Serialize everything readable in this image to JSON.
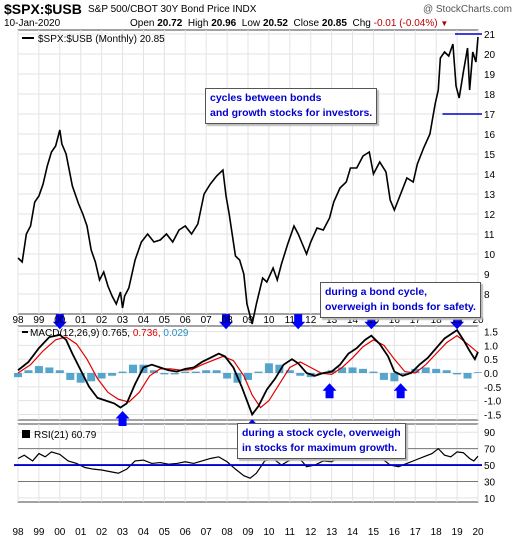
{
  "header": {
    "symbol": "$SPX:$USB",
    "subtitle": "S&P 500/CBOT 30Y Bond Price INDX",
    "credit": "@ StockCharts.com",
    "date": "10-Jan-2020",
    "quote": {
      "open_label": "Open",
      "open": "20.72",
      "high_label": "High",
      "high": "20.96",
      "low_label": "Low",
      "low": "20.52",
      "close_label": "Close",
      "close": "20.85",
      "chg_label": "Chg",
      "chg": "-0.01 (-0.04%)"
    }
  },
  "annotations": {
    "top": "cycles between bonds and growth stocks for investors.",
    "bond": "during a bond cycle, overweigh in bonds for safety.",
    "stock": "during a stock cycle, overweigh in stocks for maximum growth."
  },
  "colors": {
    "price": "#000000",
    "macd_signal": "#e00000",
    "macd_hist": "#2a8fbf",
    "macd_hist_label": "#2a8fbf",
    "annotation": "#0000cc",
    "arrow": "#0000ff",
    "level_line": "#0000cc"
  },
  "chart_data": [
    {
      "type": "line",
      "title": "$SPX:$USB (Monthly) 20.85",
      "yticks": [
        8,
        9,
        10,
        11,
        12,
        13,
        14,
        15,
        16,
        17,
        18,
        19,
        20,
        21
      ],
      "ylim": [
        7,
        21.2
      ],
      "x_start_year": 1998,
      "x_end_year": 2020,
      "xticks": [
        "98",
        "99",
        "00",
        "01",
        "02",
        "03",
        "04",
        "05",
        "06",
        "07",
        "08",
        "09",
        "10",
        "11",
        "12",
        "13",
        "14",
        "15",
        "16",
        "17",
        "18",
        "19",
        "20"
      ],
      "reference_levels": [
        21,
        17
      ],
      "series": [
        {
          "name": "$SPX:$USB",
          "x": [
            1998.0,
            1998.2,
            1998.4,
            1998.6,
            1998.8,
            1999.0,
            1999.2,
            1999.4,
            1999.6,
            1999.8,
            2000.0,
            2000.1,
            2000.3,
            2000.6,
            2000.9,
            2001.1,
            2001.3,
            2001.5,
            2001.7,
            2001.9,
            2002.1,
            2002.3,
            2002.5,
            2002.7,
            2002.9,
            2003.0,
            2003.1,
            2003.3,
            2003.6,
            2003.9,
            2004.2,
            2004.5,
            2004.8,
            2005.1,
            2005.4,
            2005.7,
            2006.0,
            2006.3,
            2006.6,
            2006.9,
            2007.2,
            2007.5,
            2007.8,
            2007.95,
            2008.1,
            2008.4,
            2008.6,
            2008.8,
            2008.95,
            2009.1,
            2009.2,
            2009.4,
            2009.7,
            2009.9,
            2010.2,
            2010.4,
            2010.6,
            2010.9,
            2011.2,
            2011.4,
            2011.6,
            2011.8,
            2012.0,
            2012.3,
            2012.6,
            2012.9,
            2013.1,
            2013.4,
            2013.7,
            2013.9,
            2014.2,
            2014.5,
            2014.8,
            2015.0,
            2015.3,
            2015.6,
            2015.8,
            2016.0,
            2016.3,
            2016.6,
            2016.9,
            2017.1,
            2017.4,
            2017.7,
            2017.95,
            2018.1,
            2018.2,
            2018.4,
            2018.6,
            2018.8,
            2018.95,
            2019.1,
            2019.3,
            2019.5,
            2019.6,
            2019.75,
            2019.9,
            2020.0
          ],
          "y": [
            9.8,
            9.6,
            11.0,
            11.4,
            12.6,
            12.9,
            13.5,
            14.4,
            15.1,
            15.4,
            16.2,
            15.5,
            15.0,
            13.4,
            12.5,
            12.0,
            11.4,
            10.2,
            9.6,
            8.7,
            9.1,
            8.4,
            7.9,
            7.5,
            8.1,
            7.3,
            7.9,
            8.3,
            9.7,
            10.6,
            11.0,
            10.6,
            10.7,
            11.0,
            10.6,
            11.2,
            11.4,
            11.0,
            11.5,
            13.0,
            13.5,
            13.9,
            14.2,
            12.9,
            12.0,
            9.9,
            9.7,
            9.0,
            7.5,
            6.9,
            6.5,
            7.5,
            8.8,
            8.6,
            9.3,
            8.7,
            9.5,
            10.5,
            11.4,
            11.0,
            10.5,
            10.0,
            10.6,
            11.3,
            11.2,
            11.8,
            12.6,
            13.3,
            13.6,
            14.3,
            14.3,
            14.9,
            15.1,
            14.0,
            14.6,
            14.1,
            12.7,
            12.2,
            13.0,
            13.8,
            13.6,
            14.5,
            15.3,
            16.0,
            17.5,
            18.2,
            19.8,
            20.1,
            19.9,
            20.5,
            18.4,
            17.8,
            19.1,
            20.3,
            18.2,
            20.1,
            19.6,
            20.85
          ]
        }
      ]
    },
    {
      "type": "line",
      "title": "MACD(12,26,9) 0.765, 0.736, 0.029",
      "legend_values": {
        "macd": "0.765",
        "signal": "0.736",
        "histogram": "0.029"
      },
      "yticks": [
        1.5,
        1.0,
        0.5,
        0.0,
        -0.5,
        -1.0,
        -1.5
      ],
      "ylim": [
        -1.7,
        1.7
      ],
      "series": [
        {
          "name": "MACD(12,26,9)",
          "x": [
            1998.0,
            1998.5,
            1999.0,
            1999.5,
            2000.0,
            2000.3,
            2000.6,
            2001.0,
            2001.4,
            2001.8,
            2002.2,
            2002.6,
            2002.9,
            2003.2,
            2003.6,
            2004.0,
            2004.4,
            2004.8,
            2005.2,
            2005.6,
            2006.0,
            2006.4,
            2006.8,
            2007.2,
            2007.6,
            2007.9,
            2008.3,
            2008.7,
            2009.0,
            2009.2,
            2009.5,
            2009.9,
            2010.3,
            2010.7,
            2011.1,
            2011.4,
            2011.8,
            2012.2,
            2012.6,
            2013.0,
            2013.4,
            2013.8,
            2014.2,
            2014.6,
            2014.9,
            2015.3,
            2015.7,
            2016.0,
            2016.4,
            2016.8,
            2017.2,
            2017.6,
            2018.0,
            2018.4,
            2018.7,
            2019.0,
            2019.3,
            2019.6,
            2019.85,
            2020.0
          ],
          "y": [
            0.1,
            0.4,
            0.9,
            1.3,
            1.38,
            1.2,
            0.7,
            0.1,
            -0.5,
            -0.9,
            -1.0,
            -1.1,
            -1.25,
            -1.1,
            -0.4,
            0.2,
            0.3,
            0.2,
            0.1,
            0.05,
            0.15,
            0.2,
            0.4,
            0.55,
            0.7,
            0.6,
            0.2,
            -0.5,
            -1.1,
            -1.5,
            -1.2,
            -0.6,
            -0.2,
            0.3,
            0.5,
            0.35,
            0.0,
            -0.1,
            0.0,
            0.05,
            0.3,
            0.7,
            0.9,
            1.2,
            1.35,
            1.05,
            0.6,
            0.05,
            -0.1,
            0.0,
            0.3,
            0.55,
            0.9,
            1.25,
            1.4,
            1.55,
            1.2,
            0.8,
            0.5,
            0.765
          ]
        },
        {
          "name": "signal",
          "x": [
            1998.0,
            1998.6,
            1999.2,
            1999.8,
            2000.3,
            2000.8,
            2001.3,
            2001.8,
            2002.3,
            2002.8,
            2003.3,
            2003.8,
            2004.3,
            2004.8,
            2005.3,
            2005.8,
            2006.3,
            2006.8,
            2007.3,
            2007.8,
            2008.3,
            2008.8,
            2009.2,
            2009.6,
            2010.0,
            2010.5,
            2011.0,
            2011.5,
            2012.0,
            2012.5,
            2013.0,
            2013.5,
            2014.0,
            2014.5,
            2015.0,
            2015.5,
            2016.0,
            2016.5,
            2017.0,
            2017.5,
            2018.0,
            2018.5,
            2019.0,
            2019.5,
            2020.0
          ],
          "y": [
            0.0,
            0.3,
            0.8,
            1.2,
            1.3,
            1.05,
            0.5,
            -0.2,
            -0.7,
            -0.95,
            -1.05,
            -0.7,
            -0.1,
            0.15,
            0.15,
            0.1,
            0.12,
            0.3,
            0.45,
            0.6,
            0.45,
            -0.1,
            -0.8,
            -1.25,
            -1.0,
            -0.4,
            0.2,
            0.4,
            0.2,
            0.0,
            -0.05,
            0.2,
            0.55,
            0.95,
            1.2,
            1.0,
            0.5,
            0.05,
            0.0,
            0.3,
            0.7,
            1.1,
            1.35,
            1.05,
            0.736
          ]
        },
        {
          "name": "histogram",
          "x": [
            1998.0,
            1998.5,
            1999.0,
            1999.5,
            2000.0,
            2000.5,
            2001.0,
            2001.5,
            2002.0,
            2002.5,
            2003.0,
            2003.5,
            2004.0,
            2004.5,
            2005.0,
            2005.5,
            2006.0,
            2006.5,
            2007.0,
            2007.5,
            2008.0,
            2008.5,
            2009.0,
            2009.5,
            2010.0,
            2010.5,
            2011.0,
            2011.5,
            2012.0,
            2012.5,
            2013.0,
            2013.5,
            2014.0,
            2014.5,
            2015.0,
            2015.5,
            2016.0,
            2016.5,
            2017.0,
            2017.5,
            2018.0,
            2018.5,
            2019.0,
            2019.5,
            2020.0
          ],
          "y": [
            -0.15,
            0.1,
            0.25,
            0.2,
            0.1,
            -0.25,
            -0.35,
            -0.3,
            -0.2,
            -0.1,
            0.05,
            0.3,
            0.3,
            0.1,
            -0.05,
            -0.05,
            0.05,
            0.05,
            0.1,
            0.1,
            -0.2,
            -0.35,
            -0.25,
            0.05,
            0.35,
            0.3,
            0.1,
            -0.1,
            -0.15,
            -0.05,
            0.1,
            0.2,
            0.2,
            0.15,
            0.05,
            -0.25,
            -0.3,
            -0.05,
            0.15,
            0.2,
            0.15,
            0.1,
            -0.05,
            -0.2,
            0.029
          ]
        }
      ]
    },
    {
      "type": "line",
      "title": "RSI(21) 60.79",
      "yticks": [
        90,
        70,
        50,
        30,
        10
      ],
      "ylim": [
        5,
        100
      ],
      "reference_levels": [
        70,
        50,
        30
      ],
      "series": [
        {
          "name": "RSI(21)",
          "x": [
            1998.0,
            1998.3,
            1998.7,
            1999.0,
            1999.3,
            1999.6,
            2000.0,
            2000.4,
            2000.8,
            2001.2,
            2001.6,
            2002.0,
            2002.4,
            2002.8,
            2003.2,
            2003.6,
            2004.0,
            2004.4,
            2004.8,
            2005.2,
            2005.6,
            2006.0,
            2006.4,
            2006.8,
            2007.2,
            2007.6,
            2008.0,
            2008.4,
            2008.8,
            2009.1,
            2009.4,
            2009.8,
            2010.2,
            2010.6,
            2011.0,
            2011.4,
            2011.8,
            2012.2,
            2012.6,
            2013.0,
            2013.4,
            2013.8,
            2014.2,
            2014.6,
            2015.0,
            2015.4,
            2015.8,
            2016.2,
            2016.6,
            2017.0,
            2017.4,
            2017.8,
            2018.1,
            2018.4,
            2018.7,
            2019.0,
            2019.3,
            2019.6,
            2019.8,
            2020.0
          ],
          "y": [
            58,
            62,
            55,
            64,
            60,
            66,
            63,
            55,
            52,
            47,
            45,
            44,
            42,
            40,
            45,
            55,
            56,
            52,
            53,
            51,
            52,
            54,
            52,
            55,
            58,
            60,
            54,
            45,
            37,
            34,
            40,
            55,
            58,
            50,
            56,
            60,
            48,
            50,
            55,
            54,
            60,
            62,
            62,
            64,
            63,
            58,
            50,
            48,
            52,
            56,
            60,
            64,
            70,
            62,
            60,
            66,
            65,
            58,
            55,
            60.79
          ]
        }
      ]
    }
  ]
}
